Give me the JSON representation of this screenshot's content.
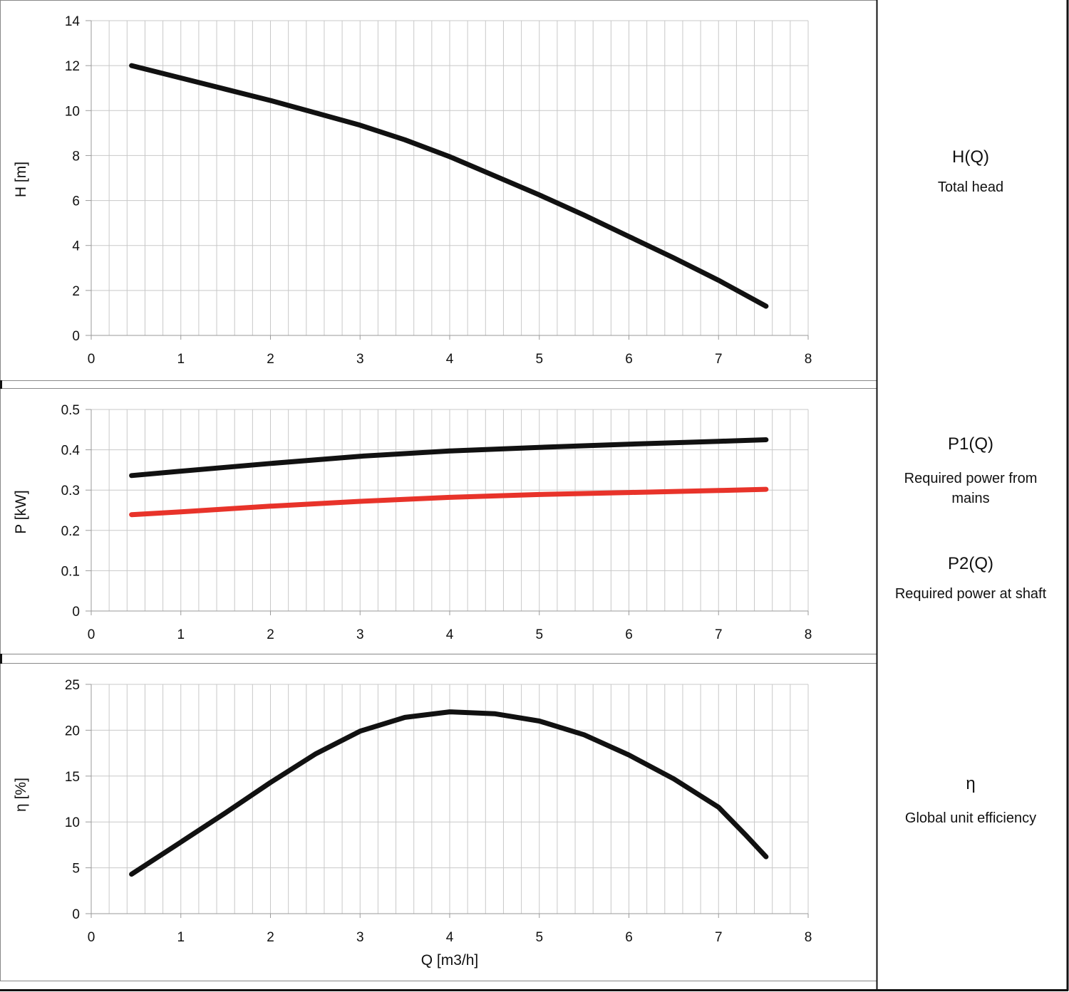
{
  "chart_data": [
    {
      "type": "line",
      "id": "head",
      "xlabel": "",
      "ylabel": "H [m]",
      "xlim": [
        0,
        8
      ],
      "ylim": [
        0,
        14
      ],
      "xticks": [
        0,
        1,
        2,
        3,
        4,
        5,
        6,
        7,
        8
      ],
      "yticks": [
        0,
        2,
        4,
        6,
        8,
        10,
        12,
        14
      ],
      "grid": true,
      "series": [
        {
          "name": "H(Q)",
          "color": "#111111",
          "x": [
            0.45,
            1.0,
            1.5,
            2.0,
            2.5,
            3.0,
            3.5,
            4.0,
            4.5,
            5.0,
            5.5,
            6.0,
            6.5,
            7.0,
            7.53
          ],
          "y": [
            12.0,
            11.45,
            10.95,
            10.45,
            9.9,
            9.35,
            8.7,
            7.95,
            7.1,
            6.25,
            5.35,
            4.4,
            3.45,
            2.45,
            1.3
          ]
        }
      ],
      "legend": [
        {
          "title": "H(Q)",
          "description": [
            "Total head"
          ],
          "color": "#111111"
        }
      ]
    },
    {
      "type": "line",
      "id": "power",
      "xlabel": "",
      "ylabel": "P [kW]",
      "xlim": [
        0,
        8
      ],
      "ylim": [
        0,
        0.5
      ],
      "xticks": [
        0,
        1,
        2,
        3,
        4,
        5,
        6,
        7,
        8
      ],
      "yticks": [
        "0",
        "0.1",
        "0.2",
        "0.3",
        "0.4",
        "0.5"
      ],
      "grid": true,
      "series": [
        {
          "name": "P1(Q)",
          "color": "#111111",
          "x": [
            0.45,
            1.0,
            2.0,
            3.0,
            4.0,
            5.0,
            6.0,
            7.0,
            7.53
          ],
          "y": [
            0.336,
            0.347,
            0.366,
            0.384,
            0.397,
            0.406,
            0.414,
            0.421,
            0.425
          ]
        },
        {
          "name": "P2(Q)",
          "color": "#e8332a",
          "x": [
            0.45,
            1.0,
            2.0,
            3.0,
            4.0,
            5.0,
            6.0,
            7.0,
            7.53
          ],
          "y": [
            0.239,
            0.246,
            0.26,
            0.272,
            0.282,
            0.289,
            0.294,
            0.299,
            0.302
          ]
        }
      ],
      "legend": [
        {
          "title": "P1(Q)",
          "description": [
            "Required power from",
            "mains"
          ],
          "color": "#111111"
        },
        {
          "title": "P2(Q)",
          "description": [
            "Required power at shaft"
          ],
          "color": "#e8332a"
        }
      ]
    },
    {
      "type": "line",
      "id": "efficiency",
      "xlabel": "Q [m3/h]",
      "ylabel": "η [%]",
      "xlim": [
        0,
        8
      ],
      "ylim": [
        0,
        25
      ],
      "xticks": [
        0,
        1,
        2,
        3,
        4,
        5,
        6,
        7,
        8
      ],
      "yticks": [
        0,
        5,
        10,
        15,
        20,
        25
      ],
      "grid": true,
      "series": [
        {
          "name": "η",
          "color": "#111111",
          "x": [
            0.45,
            1.0,
            1.5,
            2.0,
            2.5,
            3.0,
            3.5,
            4.0,
            4.5,
            5.0,
            5.5,
            6.0,
            6.5,
            7.0,
            7.3,
            7.53
          ],
          "y": [
            4.3,
            7.8,
            11.0,
            14.3,
            17.4,
            19.9,
            21.4,
            22.0,
            21.8,
            21.0,
            19.5,
            17.3,
            14.7,
            11.6,
            8.6,
            6.2
          ]
        }
      ],
      "legend": [
        {
          "title": "η",
          "description": [
            "Global unit efficiency"
          ],
          "color": "#111111"
        }
      ]
    }
  ]
}
